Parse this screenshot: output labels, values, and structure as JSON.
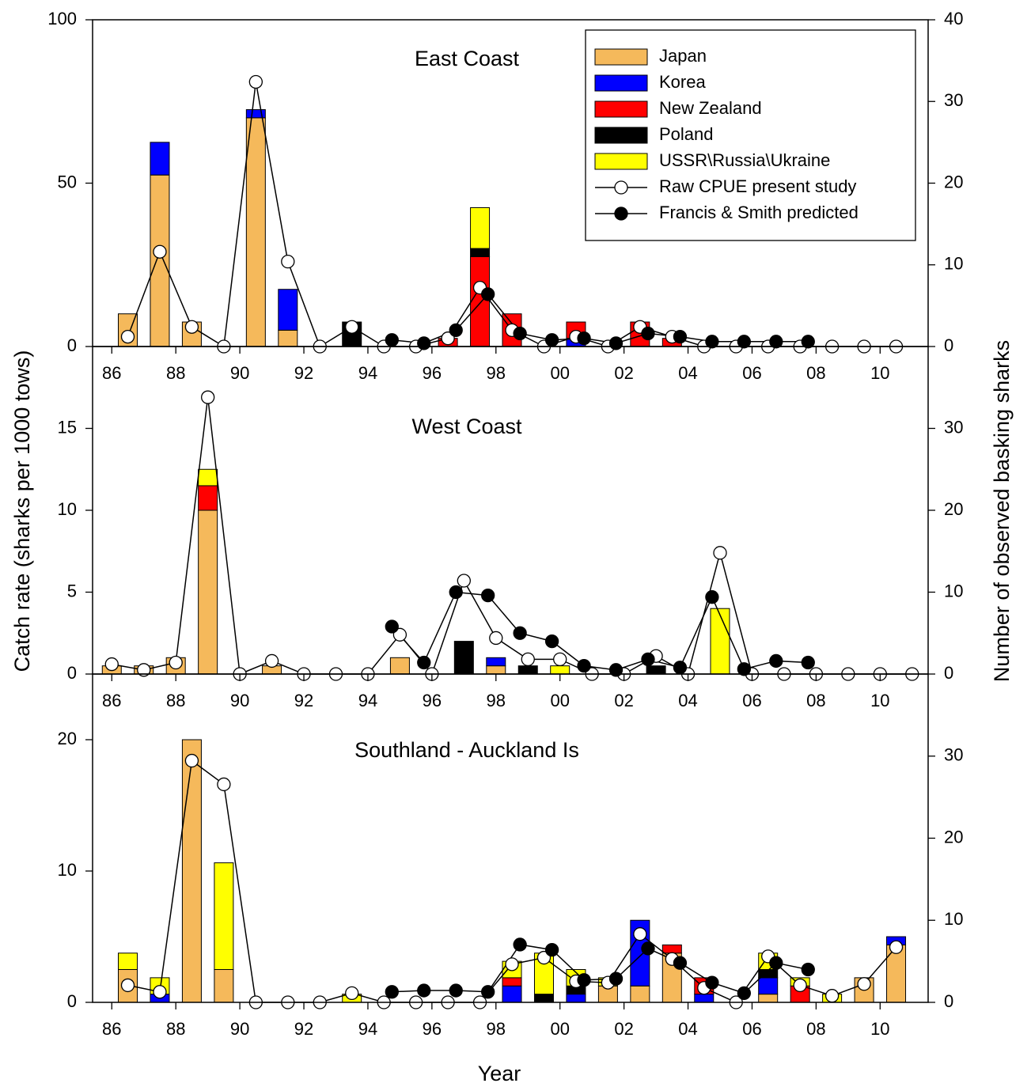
{
  "chart_data": [
    {
      "type": "combo",
      "title": "East Coast",
      "ylabel": "Catch rate (sharks per 1000 tows)",
      "y2label": "Number of observed basking sharks",
      "legend": "upper right",
      "xlim": [
        1985.4,
        2011.5
      ],
      "xticks": [
        {
          "value": 1986,
          "label": "86"
        },
        {
          "value": 1988,
          "label": "88"
        },
        {
          "value": 1990,
          "label": "90"
        },
        {
          "value": 1992,
          "label": "92"
        },
        {
          "value": 1994,
          "label": "94"
        },
        {
          "value": 1996,
          "label": "96"
        },
        {
          "value": 1998,
          "label": "98"
        },
        {
          "value": 2000,
          "label": "00"
        },
        {
          "value": 2002,
          "label": "02"
        },
        {
          "value": 2004,
          "label": "04"
        },
        {
          "value": 2006,
          "label": "06"
        },
        {
          "value": 2008,
          "label": "08"
        },
        {
          "value": 2010,
          "label": "10"
        }
      ],
      "ylim": [
        0,
        100
      ],
      "yticks": [
        0,
        50,
        100
      ],
      "y2lim": [
        0,
        40
      ],
      "y2ticks": [
        0,
        10,
        20,
        30,
        40
      ],
      "x": [
        1986.5,
        1987.5,
        1988.5,
        1989.5,
        1990.5,
        1991.5,
        1992.5,
        1993.5,
        1994.5,
        1995.5,
        1996.5,
        1997.5,
        1998.5,
        1999.5,
        2000.5,
        2001.5,
        2002.5,
        2003.5
      ],
      "series": [
        {
          "name": "Japan",
          "type": "bar",
          "axis": "y2",
          "color": "#f5b95b",
          "values": [
            4,
            21,
            3,
            0,
            28,
            2,
            0,
            0,
            0,
            0,
            0,
            0,
            0,
            0,
            0,
            0,
            0,
            0
          ]
        },
        {
          "name": "Korea",
          "type": "bar",
          "axis": "y2",
          "color": "#0000ff",
          "values": [
            0,
            4,
            0,
            0,
            1,
            5,
            0,
            0,
            0,
            0,
            0,
            0,
            0,
            0,
            1,
            0,
            0,
            0
          ]
        },
        {
          "name": "New Zealand",
          "type": "bar",
          "axis": "y2",
          "color": "#ff0000",
          "values": [
            0,
            0,
            0,
            0,
            0,
            0,
            0,
            0,
            0,
            0,
            1,
            11,
            4,
            0,
            2,
            0,
            3,
            1
          ]
        },
        {
          "name": "Poland",
          "type": "bar",
          "axis": "y2",
          "color": "#000000",
          "values": [
            0,
            0,
            0,
            0,
            0,
            0,
            0,
            3,
            0,
            0,
            0,
            1,
            0,
            0,
            0,
            0,
            0,
            0
          ]
        },
        {
          "name": "USSR\\Russia\\Ukraine",
          "type": "bar",
          "axis": "y2",
          "color": "#ffff00",
          "values": [
            0,
            0,
            0,
            0,
            0,
            0,
            0,
            0,
            0,
            0,
            0,
            5,
            0,
            0,
            0,
            0,
            0,
            0
          ]
        },
        {
          "name": "Raw CPUE present study",
          "type": "line",
          "color": "#ffffff",
          "x": [
            1986.5,
            1987.5,
            1988.5,
            1989.5,
            1990.5,
            1991.5,
            1992.5,
            1993.5,
            1994.5,
            1995.5,
            1996.5,
            1997.5,
            1998.5,
            1999.5,
            2000.5,
            2001.5,
            2002.5,
            2003.5,
            2004.5,
            2005.5,
            2006.5,
            2007.5,
            2008.5,
            2009.5,
            2010.5
          ],
          "values": [
            3,
            29,
            6,
            0,
            81,
            26,
            0,
            6,
            0,
            0,
            2.5,
            18,
            5,
            0,
            3,
            0,
            6,
            3,
            0,
            0,
            0,
            0,
            0,
            0,
            0
          ]
        },
        {
          "name": "Francis & Smith predicted",
          "type": "line",
          "color": "#000000",
          "x": [
            1994.75,
            1995.75,
            1996.75,
            1997.75,
            1998.75,
            1999.75,
            2000.75,
            2001.75,
            2002.75,
            2003.75,
            2004.75,
            2005.75,
            2006.75,
            2007.75
          ],
          "values": [
            2,
            1,
            5,
            16,
            4,
            2,
            2.5,
            1,
            4,
            3,
            1.5,
            1.5,
            1.5,
            1.5
          ]
        }
      ]
    },
    {
      "type": "combo",
      "title": "West Coast",
      "xlim": [
        1985.4,
        2011.5
      ],
      "xticks": [
        {
          "value": 1986,
          "label": "86"
        },
        {
          "value": 1988,
          "label": "88"
        },
        {
          "value": 1990,
          "label": "90"
        },
        {
          "value": 1992,
          "label": "92"
        },
        {
          "value": 1994,
          "label": "94"
        },
        {
          "value": 1996,
          "label": "96"
        },
        {
          "value": 1998,
          "label": "98"
        },
        {
          "value": 2000,
          "label": "00"
        },
        {
          "value": 2002,
          "label": "02"
        },
        {
          "value": 2004,
          "label": "04"
        },
        {
          "value": 2006,
          "label": "06"
        },
        {
          "value": 2008,
          "label": "08"
        },
        {
          "value": 2010,
          "label": "10"
        }
      ],
      "ylim": [
        0,
        20
      ],
      "yticks": [
        0,
        5,
        10,
        15
      ],
      "y2lim": [
        0,
        40
      ],
      "y2ticks": [
        0,
        10,
        20,
        30
      ],
      "x": [
        1986,
        1987,
        1988,
        1989,
        1990,
        1991,
        1992,
        1993,
        1994,
        1995,
        1996,
        1997,
        1998,
        1999,
        2000,
        2001,
        2002,
        2003,
        2004,
        2005
      ],
      "series": [
        {
          "type": "bar",
          "axis": "y2",
          "color": "#f5b95b",
          "values": [
            1,
            1,
            2,
            20,
            0,
            1,
            0,
            0,
            0,
            2,
            0,
            0,
            1,
            0,
            0,
            0,
            0,
            0,
            0,
            0
          ]
        },
        {
          "type": "bar",
          "axis": "y2",
          "color": "#0000ff",
          "values": [
            0,
            0,
            0,
            0,
            0,
            0,
            0,
            0,
            0,
            0,
            0,
            0,
            1,
            0,
            0,
            0,
            0,
            0,
            0,
            0
          ]
        },
        {
          "type": "bar",
          "axis": "y2",
          "color": "#ff0000",
          "values": [
            0,
            0,
            0,
            3,
            0,
            0,
            0,
            0,
            0,
            0,
            0,
            0,
            0,
            0,
            0,
            0,
            0,
            0,
            0,
            0
          ]
        },
        {
          "type": "bar",
          "axis": "y2",
          "color": "#000000",
          "values": [
            0,
            0,
            0,
            0,
            0,
            0,
            0,
            0,
            0,
            0,
            0,
            4,
            0,
            1,
            0,
            0,
            0,
            1,
            0,
            0
          ]
        },
        {
          "type": "bar",
          "axis": "y2",
          "color": "#ffff00",
          "values": [
            0,
            0,
            0,
            2,
            0,
            0,
            0,
            0,
            0,
            0,
            0,
            0,
            0,
            0,
            1,
            0,
            0,
            0,
            0,
            8
          ]
        },
        {
          "type": "line",
          "color": "#ffffff",
          "x": [
            1986,
            1987,
            1988,
            1989,
            1990,
            1991,
            1992,
            1993,
            1994,
            1995,
            1996,
            1997,
            1998,
            1999,
            2000,
            2001,
            2002,
            2003,
            2004,
            2005,
            2006,
            2007,
            2008,
            2009,
            2010,
            2011
          ],
          "values": [
            0.6,
            0.25,
            0.7,
            16.9,
            0,
            0.8,
            0,
            0,
            0,
            2.4,
            0,
            5.7,
            2.2,
            0.9,
            0.9,
            0,
            0,
            1.1,
            0,
            7.4,
            0,
            0,
            0,
            0,
            0,
            0
          ]
        },
        {
          "type": "line",
          "color": "#000000",
          "x": [
            1994.75,
            1995.75,
            1996.75,
            1997.75,
            1998.75,
            1999.75,
            2000.75,
            2001.75,
            2002.75,
            2003.75,
            2004.75,
            2005.75,
            2006.75,
            2007.75
          ],
          "values": [
            2.9,
            0.7,
            5.0,
            4.8,
            2.5,
            2.0,
            0.5,
            0.25,
            0.9,
            0.4,
            4.7,
            0.3,
            0.8,
            0.7
          ]
        }
      ]
    },
    {
      "type": "combo",
      "title": "Southland - Auckland Is",
      "xlabel": "Year",
      "xlim": [
        1985.4,
        2011.5
      ],
      "xticks": [
        {
          "value": 1986,
          "label": "86"
        },
        {
          "value": 1988,
          "label": "88"
        },
        {
          "value": 1990,
          "label": "90"
        },
        {
          "value": 1992,
          "label": "92"
        },
        {
          "value": 1994,
          "label": "94"
        },
        {
          "value": 1996,
          "label": "96"
        },
        {
          "value": 1998,
          "label": "98"
        },
        {
          "value": 2000,
          "label": "00"
        },
        {
          "value": 2002,
          "label": "02"
        },
        {
          "value": 2004,
          "label": "04"
        },
        {
          "value": 2006,
          "label": "06"
        },
        {
          "value": 2008,
          "label": "08"
        },
        {
          "value": 2010,
          "label": "10"
        }
      ],
      "ylim": [
        0,
        25
      ],
      "yticks": [
        0,
        10,
        20
      ],
      "y2lim": [
        0,
        40
      ],
      "y2ticks": [
        0,
        10,
        20,
        30
      ],
      "x": [
        1986.5,
        1987.5,
        1988.5,
        1989.5,
        1990.5,
        1991.5,
        1992.5,
        1993.5,
        1994.5,
        1995.5,
        1996.5,
        1997.5,
        1998.5,
        1999.5,
        2000.5,
        2001.5,
        2002.5,
        2003.5,
        2004.5,
        2005.5,
        2006.5,
        2007.5,
        2008.5,
        2009.5,
        2010.5
      ],
      "series": [
        {
          "type": "bar",
          "axis": "y2",
          "color": "#f5b95b",
          "values": [
            4,
            0,
            32,
            4,
            0,
            0,
            0,
            0,
            0,
            0,
            0,
            0,
            0,
            0,
            0,
            2,
            2,
            6,
            0,
            0,
            1,
            0,
            0,
            3,
            7
          ]
        },
        {
          "type": "bar",
          "axis": "y2",
          "color": "#0000ff",
          "values": [
            0,
            1,
            0,
            0,
            0,
            0,
            0,
            0,
            0,
            0,
            0,
            0,
            2,
            0,
            1,
            0,
            8,
            0,
            1,
            0,
            2,
            0,
            0,
            0,
            1
          ]
        },
        {
          "type": "bar",
          "axis": "y2",
          "color": "#ff0000",
          "values": [
            0,
            0,
            0,
            0,
            0,
            0,
            0,
            0,
            0,
            0,
            0,
            0,
            1,
            0,
            0,
            0,
            0,
            1,
            2,
            0,
            0,
            2,
            0,
            0,
            0
          ]
        },
        {
          "type": "bar",
          "axis": "y2",
          "color": "#000000",
          "values": [
            0,
            0,
            0,
            0,
            0,
            0,
            0,
            0,
            0,
            0,
            0,
            0,
            0,
            1,
            1,
            0,
            0,
            0,
            0,
            0,
            1,
            0,
            0,
            0,
            0
          ]
        },
        {
          "type": "bar",
          "axis": "y2",
          "color": "#ffff00",
          "values": [
            2,
            2,
            0,
            13,
            0,
            0,
            0,
            1,
            0,
            0,
            0,
            0,
            2,
            5,
            2,
            1,
            0,
            0,
            0,
            0,
            2,
            1,
            1,
            0,
            0
          ]
        },
        {
          "type": "line",
          "color": "#ffffff",
          "x": [
            1986.5,
            1987.5,
            1988.5,
            1989.5,
            1990.5,
            1991.5,
            1992.5,
            1993.5,
            1994.5,
            1995.5,
            1996.5,
            1997.5,
            1998.5,
            1999.5,
            2000.5,
            2001.5,
            2002.5,
            2003.5,
            2004.5,
            2005.5,
            2006.5,
            2007.5,
            2008.5,
            2009.5,
            2010.5
          ],
          "values": [
            1.3,
            0.8,
            18.4,
            16.6,
            0,
            0,
            0,
            0.7,
            0,
            0,
            0,
            0,
            2.9,
            3.4,
            1.6,
            1.5,
            5.2,
            3.3,
            1.1,
            0,
            3.5,
            1.3,
            0.5,
            1.4,
            4.2
          ]
        },
        {
          "type": "line",
          "color": "#000000",
          "x": [
            1994.75,
            1995.75,
            1996.75,
            1997.75,
            1998.75,
            1999.75,
            2000.75,
            2001.75,
            2002.75,
            2003.75,
            2004.75,
            2005.75,
            2006.75,
            2007.75
          ],
          "values": [
            0.8,
            0.9,
            0.9,
            0.8,
            4.4,
            4.0,
            1.7,
            1.8,
            4.1,
            3.0,
            1.5,
            0.7,
            3.0,
            2.5
          ]
        }
      ]
    }
  ]
}
